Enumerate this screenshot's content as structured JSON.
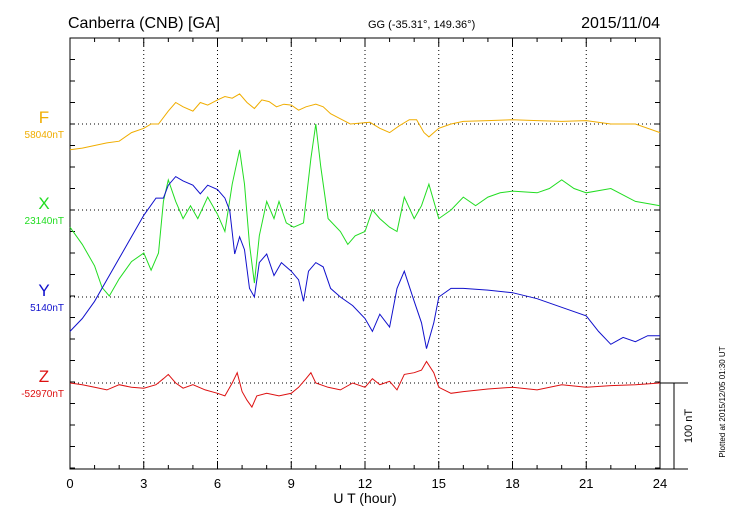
{
  "header": {
    "station": "Canberra (CNB)  [GA]",
    "coords": "GG (-35.31°, 149.36°)",
    "date": "2015/11/04"
  },
  "plotted_note": "Plotted at 2015/12/05 01:30 UT",
  "scale_label": "100 nT",
  "chart_data": {
    "type": "line",
    "xlabel": "U T (hour)",
    "xlim": [
      0,
      24
    ],
    "xticks": [
      0,
      3,
      6,
      9,
      12,
      15,
      18,
      21,
      24
    ],
    "nT_per_division": 100,
    "grid": true,
    "series": [
      {
        "name": "F",
        "baseline_label": "58040nT",
        "baseline": 58040,
        "color": "#f0ad00",
        "points": [
          [
            0,
            58010
          ],
          [
            0.5,
            58012
          ],
          [
            1,
            58015
          ],
          [
            1.5,
            58018
          ],
          [
            2,
            58020
          ],
          [
            2.5,
            58030
          ],
          [
            3,
            58035
          ],
          [
            3.3,
            58040
          ],
          [
            3.6,
            58040
          ],
          [
            4,
            58055
          ],
          [
            4.3,
            58065
          ],
          [
            4.6,
            58060
          ],
          [
            5,
            58055
          ],
          [
            5.3,
            58065
          ],
          [
            5.6,
            58062
          ],
          [
            6,
            58068
          ],
          [
            6.3,
            58072
          ],
          [
            6.6,
            58070
          ],
          [
            6.9,
            58075
          ],
          [
            7.2,
            58065
          ],
          [
            7.5,
            58058
          ],
          [
            7.8,
            58068
          ],
          [
            8.1,
            58066
          ],
          [
            8.4,
            58060
          ],
          [
            8.7,
            58063
          ],
          [
            9,
            58062
          ],
          [
            9.3,
            58056
          ],
          [
            9.6,
            58060
          ],
          [
            10,
            58063
          ],
          [
            10.3,
            58060
          ],
          [
            10.6,
            58052
          ],
          [
            11,
            58046
          ],
          [
            11.4,
            58040
          ],
          [
            11.8,
            58041
          ],
          [
            12.2,
            58042
          ],
          [
            12.6,
            58035
          ],
          [
            13,
            58030
          ],
          [
            13.4,
            58038
          ],
          [
            13.8,
            58045
          ],
          [
            14.1,
            58045
          ],
          [
            14.4,
            58030
          ],
          [
            14.6,
            58025
          ],
          [
            15,
            58035
          ],
          [
            15.5,
            58040
          ],
          [
            16,
            58043
          ],
          [
            17,
            58044
          ],
          [
            18,
            58045
          ],
          [
            19,
            58044
          ],
          [
            20,
            58043
          ],
          [
            21,
            58044
          ],
          [
            22,
            58040
          ],
          [
            23,
            58040
          ],
          [
            24,
            58030
          ]
        ]
      },
      {
        "name": "X",
        "baseline_label": "23140nT",
        "baseline": 23140,
        "color": "#22dd22",
        "points": [
          [
            0,
            23120
          ],
          [
            0.5,
            23100
          ],
          [
            1,
            23075
          ],
          [
            1.3,
            23050
          ],
          [
            1.6,
            23040
          ],
          [
            2,
            23060
          ],
          [
            2.5,
            23080
          ],
          [
            3,
            23090
          ],
          [
            3.3,
            23070
          ],
          [
            3.6,
            23090
          ],
          [
            3.8,
            23150
          ],
          [
            4,
            23175
          ],
          [
            4.3,
            23150
          ],
          [
            4.6,
            23130
          ],
          [
            4.9,
            23145
          ],
          [
            5.2,
            23130
          ],
          [
            5.6,
            23155
          ],
          [
            6,
            23135
          ],
          [
            6.3,
            23115
          ],
          [
            6.6,
            23170
          ],
          [
            6.9,
            23210
          ],
          [
            7.1,
            23170
          ],
          [
            7.3,
            23100
          ],
          [
            7.5,
            23055
          ],
          [
            7.7,
            23110
          ],
          [
            8,
            23150
          ],
          [
            8.3,
            23130
          ],
          [
            8.5,
            23150
          ],
          [
            8.8,
            23125
          ],
          [
            9.1,
            23120
          ],
          [
            9.5,
            23125
          ],
          [
            9.8,
            23200
          ],
          [
            10,
            23240
          ],
          [
            10.2,
            23190
          ],
          [
            10.5,
            23130
          ],
          [
            11,
            23115
          ],
          [
            11.3,
            23100
          ],
          [
            11.6,
            23110
          ],
          [
            12,
            23115
          ],
          [
            12.3,
            23140
          ],
          [
            12.6,
            23130
          ],
          [
            13,
            23120
          ],
          [
            13.3,
            23115
          ],
          [
            13.6,
            23155
          ],
          [
            14,
            23130
          ],
          [
            14.3,
            23145
          ],
          [
            14.6,
            23170
          ],
          [
            15,
            23130
          ],
          [
            15.5,
            23140
          ],
          [
            16,
            23155
          ],
          [
            16.5,
            23145
          ],
          [
            17,
            23155
          ],
          [
            17.5,
            23160
          ],
          [
            18,
            23162
          ],
          [
            19,
            23160
          ],
          [
            19.5,
            23165
          ],
          [
            20,
            23175
          ],
          [
            20.5,
            23165
          ],
          [
            21,
            23160
          ],
          [
            22,
            23165
          ],
          [
            23,
            23150
          ],
          [
            24,
            23145
          ]
        ]
      },
      {
        "name": "Y",
        "baseline_label": "5140nT",
        "baseline": 5140,
        "color": "#1010cc",
        "points": [
          [
            0,
            5100
          ],
          [
            0.5,
            5115
          ],
          [
            1,
            5135
          ],
          [
            1.5,
            5160
          ],
          [
            2,
            5185
          ],
          [
            2.5,
            5210
          ],
          [
            3,
            5235
          ],
          [
            3.5,
            5255
          ],
          [
            3.8,
            5255
          ],
          [
            4,
            5270
          ],
          [
            4.3,
            5280
          ],
          [
            4.6,
            5275
          ],
          [
            5,
            5270
          ],
          [
            5.3,
            5260
          ],
          [
            5.6,
            5270
          ],
          [
            6,
            5265
          ],
          [
            6.3,
            5255
          ],
          [
            6.5,
            5240
          ],
          [
            6.7,
            5190
          ],
          [
            6.9,
            5210
          ],
          [
            7.1,
            5195
          ],
          [
            7.3,
            5150
          ],
          [
            7.5,
            5140
          ],
          [
            7.7,
            5180
          ],
          [
            8,
            5190
          ],
          [
            8.3,
            5165
          ],
          [
            8.6,
            5180
          ],
          [
            9,
            5170
          ],
          [
            9.3,
            5160
          ],
          [
            9.5,
            5135
          ],
          [
            9.7,
            5170
          ],
          [
            10,
            5180
          ],
          [
            10.3,
            5175
          ],
          [
            10.6,
            5150
          ],
          [
            11,
            5140
          ],
          [
            11.5,
            5130
          ],
          [
            12,
            5115
          ],
          [
            12.3,
            5100
          ],
          [
            12.6,
            5120
          ],
          [
            13,
            5105
          ],
          [
            13.3,
            5150
          ],
          [
            13.6,
            5170
          ],
          [
            14,
            5135
          ],
          [
            14.3,
            5110
          ],
          [
            14.5,
            5080
          ],
          [
            14.8,
            5110
          ],
          [
            15,
            5140
          ],
          [
            15.5,
            5150
          ],
          [
            16,
            5150
          ],
          [
            17,
            5148
          ],
          [
            18,
            5145
          ],
          [
            19,
            5138
          ],
          [
            20,
            5128
          ],
          [
            21,
            5118
          ],
          [
            21.5,
            5100
          ],
          [
            22,
            5085
          ],
          [
            22.5,
            5093
          ],
          [
            23,
            5088
          ],
          [
            23.5,
            5095
          ],
          [
            24,
            5095
          ]
        ]
      },
      {
        "name": "Z",
        "baseline_label": "-52970nT",
        "baseline": -52970,
        "color": "#dd1111",
        "points": [
          [
            0,
            -52970
          ],
          [
            0.5,
            -52972
          ],
          [
            1,
            -52975
          ],
          [
            1.5,
            -52978
          ],
          [
            2,
            -52972
          ],
          [
            2.5,
            -52975
          ],
          [
            3,
            -52976
          ],
          [
            3.5,
            -52972
          ],
          [
            3.8,
            -52965
          ],
          [
            4,
            -52960
          ],
          [
            4.3,
            -52970
          ],
          [
            4.6,
            -52976
          ],
          [
            5,
            -52972
          ],
          [
            5.5,
            -52978
          ],
          [
            6,
            -52982
          ],
          [
            6.3,
            -52985
          ],
          [
            6.6,
            -52970
          ],
          [
            6.8,
            -52958
          ],
          [
            7,
            -52980
          ],
          [
            7.2,
            -52990
          ],
          [
            7.4,
            -52998
          ],
          [
            7.6,
            -52985
          ],
          [
            8,
            -52982
          ],
          [
            8.5,
            -52985
          ],
          [
            9,
            -52982
          ],
          [
            9.3,
            -52975
          ],
          [
            9.6,
            -52965
          ],
          [
            9.8,
            -52958
          ],
          [
            10,
            -52970
          ],
          [
            10.5,
            -52975
          ],
          [
            11,
            -52978
          ],
          [
            11.5,
            -52970
          ],
          [
            12,
            -52975
          ],
          [
            12.3,
            -52965
          ],
          [
            12.6,
            -52972
          ],
          [
            13,
            -52968
          ],
          [
            13.3,
            -52978
          ],
          [
            13.6,
            -52960
          ],
          [
            14,
            -52958
          ],
          [
            14.3,
            -52955
          ],
          [
            14.5,
            -52945
          ],
          [
            14.8,
            -52958
          ],
          [
            15,
            -52975
          ],
          [
            15.5,
            -52982
          ],
          [
            16,
            -52980
          ],
          [
            17,
            -52977
          ],
          [
            18,
            -52975
          ],
          [
            19,
            -52978
          ],
          [
            20,
            -52972
          ],
          [
            21,
            -52975
          ],
          [
            22,
            -52973
          ],
          [
            23,
            -52972
          ],
          [
            24,
            -52970
          ]
        ]
      }
    ]
  }
}
